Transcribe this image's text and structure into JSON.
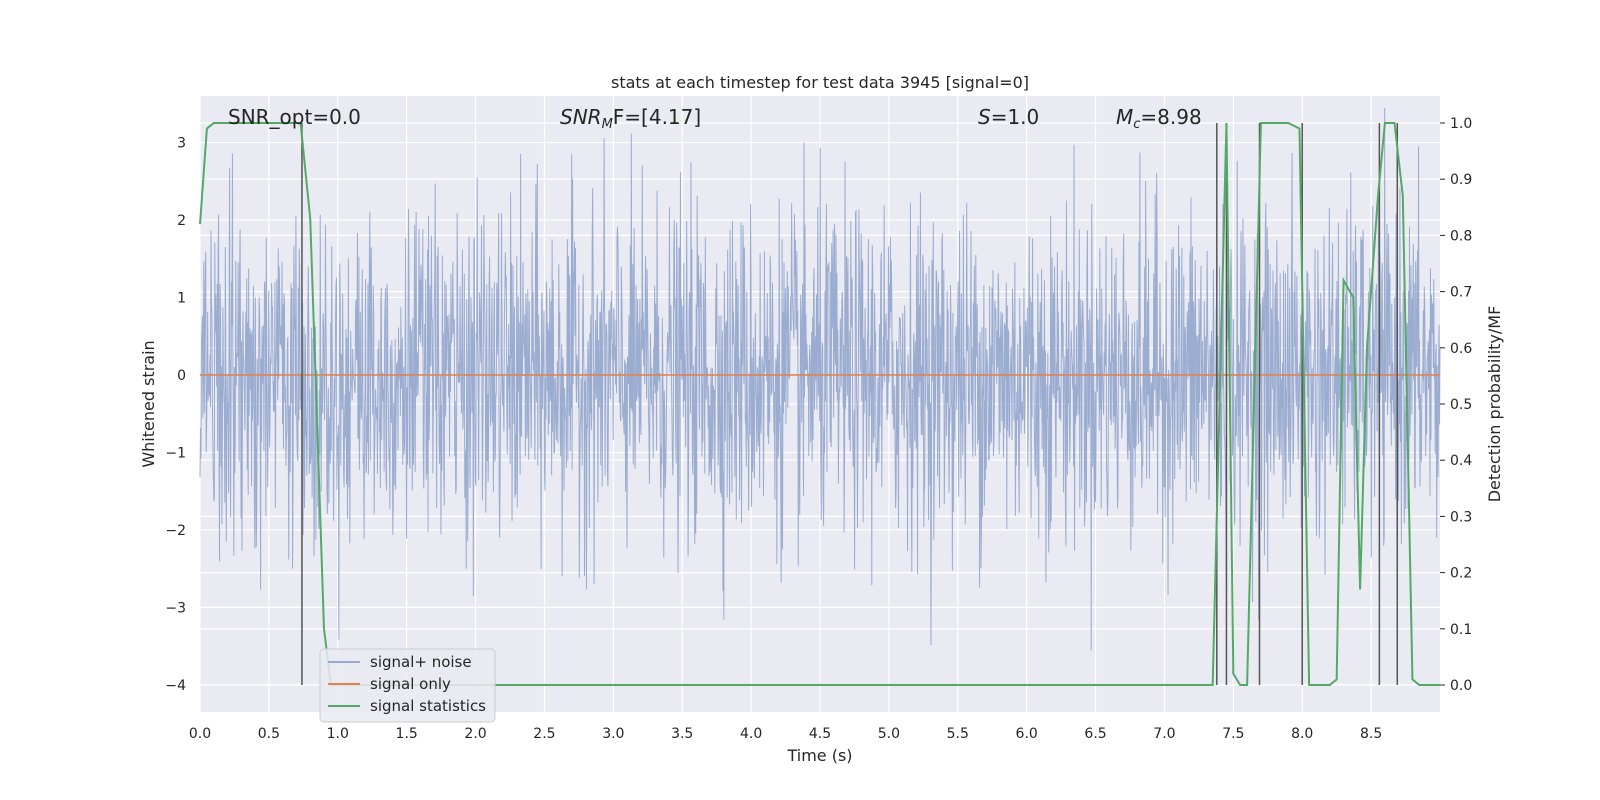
{
  "chart_data": {
    "type": "line",
    "title": "stats at each timestep for test data 3945 [signal=0]",
    "xlabel": "Time (s)",
    "ylabel": "Whitened strain",
    "ylabel_right": "Detection probability/MF",
    "xlim": [
      0.0,
      9.0
    ],
    "ylim": [
      -4.35,
      3.6
    ],
    "ylim_right": [
      -0.048,
      1.048
    ],
    "xticks": [
      "0.0",
      "0.5",
      "1.0",
      "1.5",
      "2.0",
      "2.5",
      "3.0",
      "3.5",
      "4.0",
      "4.5",
      "5.0",
      "5.5",
      "6.0",
      "6.5",
      "7.0",
      "7.5",
      "8.0",
      "8.5"
    ],
    "yticks": [
      "3",
      "2",
      "1",
      "0",
      "−1",
      "−2",
      "−3",
      "−4"
    ],
    "yticks_right": [
      "1.0",
      "0.9",
      "0.8",
      "0.7",
      "0.6",
      "0.5",
      "0.4",
      "0.3",
      "0.2",
      "0.1",
      "0.0"
    ],
    "grid": true,
    "legend_position": "lower-left",
    "annotations": {
      "snr_opt": "SNR_opt=0.0",
      "snr_mf_pre": "SNR",
      "snr_mf_sub": "M",
      "snr_mf_post": "F=[4.17]",
      "s_sym": "S",
      "s_val": "=1.0",
      "mc_sym": "M",
      "mc_sub": "c",
      "mc_val": "=8.98"
    },
    "series": [
      {
        "name": "signal+ noise",
        "color": "#97a9cf",
        "description_values": "white-noise strain, roughly ±1.5 with peaks near ±3.5",
        "x_range": [
          0.0,
          9.0
        ],
        "min": -3.95,
        "max": 3.45
      },
      {
        "name": "signal only",
        "color": "#dd8452",
        "x": [
          0.0,
          9.0
        ],
        "y": [
          0.0,
          0.0
        ]
      },
      {
        "name": "signal statistics",
        "color": "#55a868",
        "axis": "right",
        "x": [
          0.0,
          0.05,
          0.1,
          0.5,
          0.7,
          0.73,
          0.8,
          0.9,
          0.95,
          7.3,
          7.35,
          7.45,
          7.5,
          7.55,
          7.6,
          7.7,
          7.75,
          7.9,
          7.98,
          8.05,
          8.1,
          8.2,
          8.25,
          8.3,
          8.37,
          8.42,
          8.47,
          8.55,
          8.6,
          8.67,
          8.73,
          8.8,
          8.85,
          8.9,
          9.0
        ],
        "y": [
          0.82,
          0.99,
          1.0,
          1.0,
          1.0,
          1.0,
          0.83,
          0.1,
          0.0,
          0.0,
          0.0,
          1.0,
          0.02,
          0.0,
          0.0,
          1.0,
          1.0,
          1.0,
          0.99,
          0.0,
          0.0,
          0.0,
          0.01,
          0.72,
          0.69,
          0.17,
          0.6,
          0.87,
          1.0,
          1.0,
          0.87,
          0.01,
          0.0,
          0.0,
          0.0
        ]
      }
    ],
    "vertical_markers": {
      "color": "#555555",
      "x": [
        0.74,
        7.38,
        7.45,
        7.69,
        8.0,
        8.56,
        8.69
      ]
    }
  }
}
